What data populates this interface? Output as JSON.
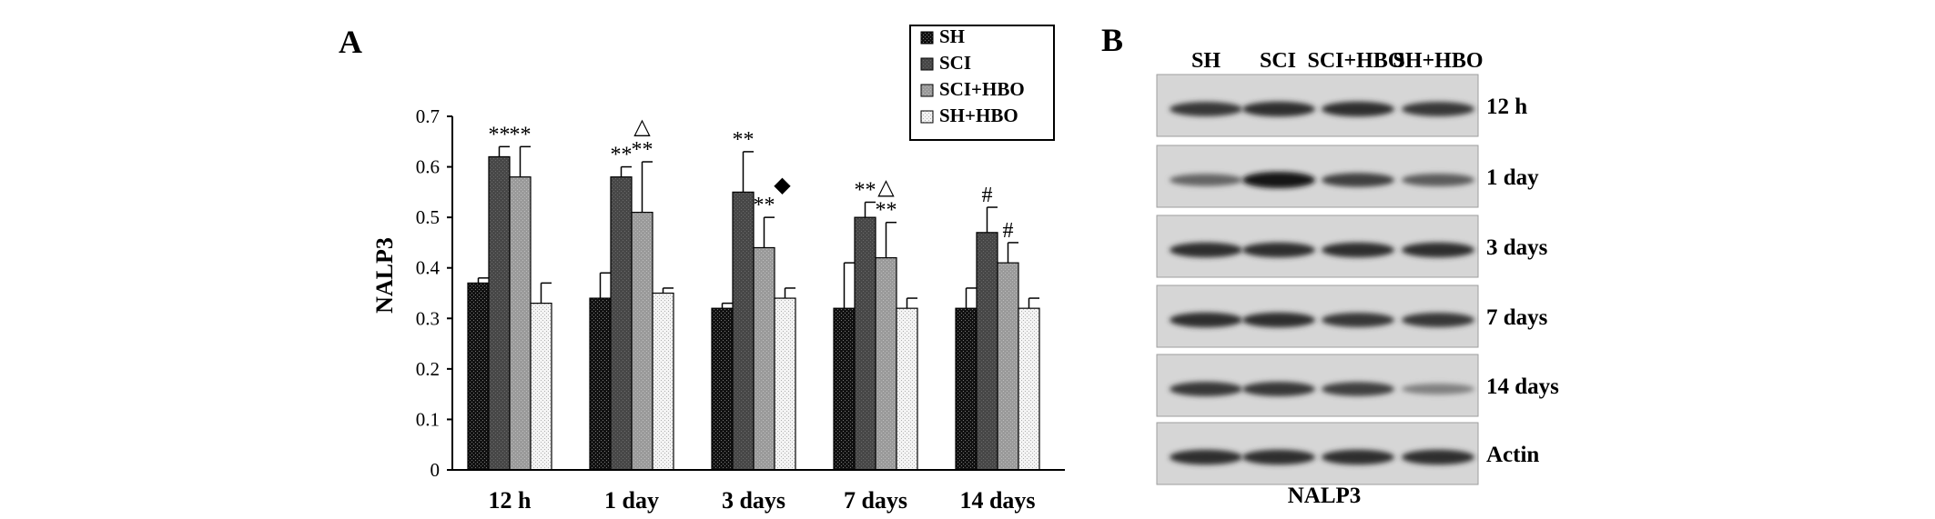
{
  "panel_a_label": "A",
  "panel_b_label": "B",
  "chart_data": {
    "type": "bar",
    "title": "",
    "xlabel": "",
    "ylabel": "NALP3",
    "ylim": [
      0,
      0.7
    ],
    "yticks": [
      "0",
      "0.1",
      "0.2",
      "0.3",
      "0.4",
      "0.5",
      "0.6",
      "0.7"
    ],
    "categories": [
      "12 h",
      "1 day",
      "3 days",
      "7 days",
      "14 days"
    ],
    "legend_position": "top-right",
    "series": [
      {
        "name": "SH",
        "values": [
          0.37,
          0.34,
          0.32,
          0.32,
          0.32
        ],
        "errors": [
          0.01,
          0.05,
          0.01,
          0.09,
          0.04
        ],
        "color": "#111111"
      },
      {
        "name": "SCI",
        "values": [
          0.62,
          0.58,
          0.55,
          0.5,
          0.47
        ],
        "errors": [
          0.02,
          0.02,
          0.08,
          0.03,
          0.05
        ],
        "color": "#4a4a4a"
      },
      {
        "name": "SCI+HBO",
        "values": [
          0.58,
          0.51,
          0.44,
          0.42,
          0.41
        ],
        "errors": [
          0.06,
          0.1,
          0.06,
          0.07,
          0.04
        ],
        "color": "#9a9a9a"
      },
      {
        "name": "SH+HBO",
        "values": [
          0.33,
          0.35,
          0.34,
          0.32,
          0.32
        ],
        "errors": [
          0.04,
          0.01,
          0.02,
          0.02,
          0.02
        ],
        "color": "#efefef"
      }
    ],
    "annotations": [
      {
        "category": 0,
        "series": 1,
        "text": "**"
      },
      {
        "category": 0,
        "series": 2,
        "text": "**"
      },
      {
        "category": 1,
        "series": 1,
        "text": "**"
      },
      {
        "category": 1,
        "series": 2,
        "text": "**"
      },
      {
        "category": 1,
        "series": 2,
        "text": "△"
      },
      {
        "category": 2,
        "series": 1,
        "text": "**"
      },
      {
        "category": 2,
        "series": 2,
        "text": "**"
      },
      {
        "category": 2,
        "series": 2,
        "text": "◆"
      },
      {
        "category": 3,
        "series": 1,
        "text": "**"
      },
      {
        "category": 3,
        "series": 2,
        "text": "**"
      },
      {
        "category": 3,
        "series": 2,
        "text": "△"
      },
      {
        "category": 4,
        "series": 1,
        "text": "#"
      },
      {
        "category": 4,
        "series": 2,
        "text": "#"
      }
    ]
  },
  "blot": {
    "lanes": [
      "SH",
      "SCI",
      "SCI+HBO",
      "SH+HBO"
    ],
    "rows": [
      {
        "label": "12 h",
        "intensities": [
          0.8,
          0.85,
          0.85,
          0.8
        ]
      },
      {
        "label": "1 day",
        "intensities": [
          0.55,
          1.0,
          0.75,
          0.6
        ]
      },
      {
        "label": "3 days",
        "intensities": [
          0.85,
          0.85,
          0.85,
          0.85
        ]
      },
      {
        "label": "7 days",
        "intensities": [
          0.85,
          0.85,
          0.8,
          0.8
        ]
      },
      {
        "label": "14 days",
        "intensities": [
          0.8,
          0.8,
          0.75,
          0.4
        ]
      },
      {
        "label": "Actin",
        "intensities": [
          0.85,
          0.85,
          0.85,
          0.85
        ]
      }
    ],
    "caption": "NALP3"
  }
}
